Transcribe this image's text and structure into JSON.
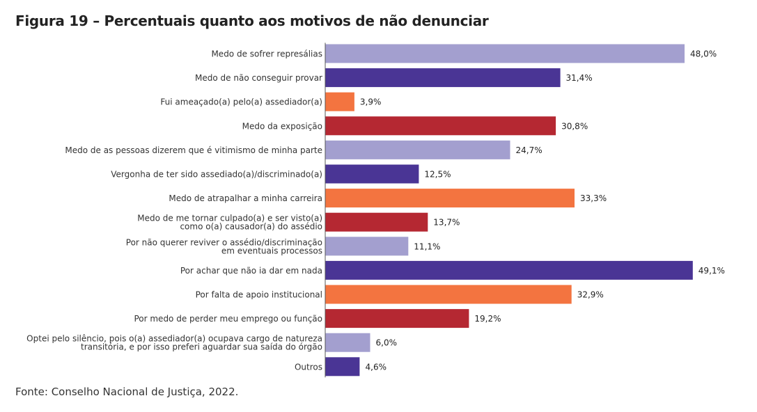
{
  "title": "Figura 19 – Percentuais quanto aos motivos de não denunciar",
  "source": "Fonte: Conselho Nacional de Justiça, 2022.",
  "colors": {
    "lavender": "#a39fcf",
    "purple": "#4a3595",
    "orange": "#f37440",
    "red": "#b52832"
  },
  "chart_data": {
    "type": "bar",
    "orientation": "horizontal",
    "title": "Figura 19 – Percentuais quanto aos motivos de não denunciar",
    "xlabel": "",
    "ylabel": "",
    "xlim": [
      0,
      50
    ],
    "grid": false,
    "legend": "none",
    "categories": [
      "Medo de sofrer represálias",
      "Medo de não conseguir provar",
      "Fui ameaçado(a) pelo(a) assediador(a)",
      "Medo da exposição",
      "Medo de as pessoas dizerem que é vitimismo de minha parte",
      "Vergonha de ter sido assediado(a)/discriminado(a)",
      "Medo de atrapalhar a minha carreira",
      "Medo de me tornar culpado(a) e ser visto(a) como o(a) causador(a) do assédio",
      "Por não querer reviver o assédio/discriminação em eventuais processos",
      "Por achar que não ia dar em nada",
      "Por falta de apoio institucional",
      "Por medo de perder meu emprego ou função",
      "Optei pelo silêncio, pois o(a) assediador(a) ocupava cargo de natureza transitória, e por isso preferi aguardar sua saída do órgão",
      "Outros"
    ],
    "category_lines": [
      [
        "Medo de sofrer represálias"
      ],
      [
        "Medo de não conseguir provar"
      ],
      [
        "Fui ameaçado(a) pelo(a) assediador(a)"
      ],
      [
        "Medo da exposição"
      ],
      [
        "Medo de as pessoas dizerem que é vitimismo de minha parte"
      ],
      [
        "Vergonha de ter sido assediado(a)/discriminado(a)"
      ],
      [
        "Medo de atrapalhar a minha carreira"
      ],
      [
        "Medo de me tornar culpado(a) e ser visto(a)",
        "como o(a) causador(a) do assédio"
      ],
      [
        "Por não querer reviver o assédio/discriminação",
        "em eventuais processos"
      ],
      [
        "Por achar que não ia dar em nada"
      ],
      [
        "Por falta de apoio institucional"
      ],
      [
        "Por medo de perder meu emprego ou função"
      ],
      [
        "Optei pelo silêncio, pois o(a) assediador(a) ocupava cargo de natureza",
        "transitória, e por isso preferi aguardar sua saída do órgão"
      ],
      [
        "Outros"
      ]
    ],
    "values": [
      48.0,
      31.4,
      3.9,
      30.8,
      24.7,
      12.5,
      33.3,
      13.7,
      11.1,
      49.1,
      32.9,
      19.2,
      6.0,
      4.6
    ],
    "value_labels": [
      "48,0%",
      "31,4%",
      "3,9%",
      "30,8%",
      "24,7%",
      "12,5%",
      "33,3%",
      "13,7%",
      "11,1%",
      "49,1%",
      "32,9%",
      "19,2%",
      "6,0%",
      "4,6%"
    ],
    "bar_colors": [
      "#a39fcf",
      "#4a3595",
      "#f37440",
      "#b52832",
      "#a39fcf",
      "#4a3595",
      "#f37440",
      "#b52832",
      "#a39fcf",
      "#4a3595",
      "#f37440",
      "#b52832",
      "#a39fcf",
      "#4a3595"
    ]
  }
}
